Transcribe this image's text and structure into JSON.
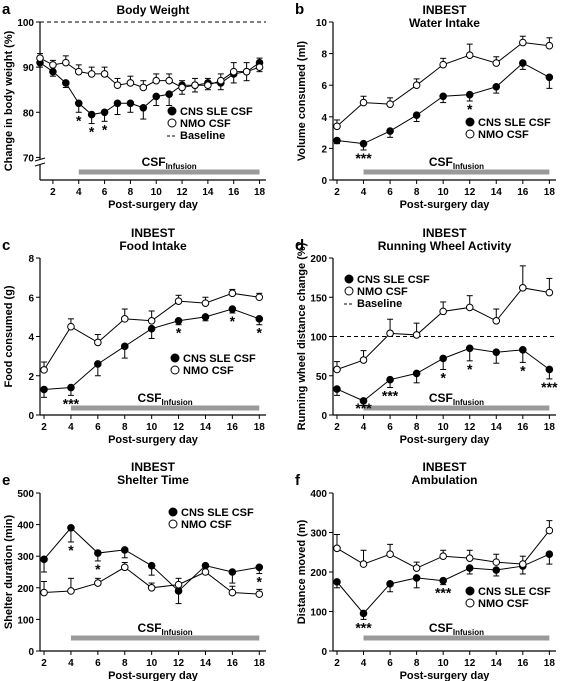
{
  "chart_data": [
    {
      "panel_letter": "a",
      "type": "line",
      "title_lines": [
        "Body Weight"
      ],
      "xlabel": "Post-surgery day",
      "ylabel": "Change in body weight (%)",
      "x_ticks": [
        2,
        4,
        6,
        8,
        10,
        12,
        14,
        16,
        18
      ],
      "xlim": [
        1,
        18.5
      ],
      "y_ticks": [
        70,
        80,
        90,
        100
      ],
      "y_tick_labels": [
        "70",
        "80",
        "90",
        "100"
      ],
      "ylim": [
        65,
        100
      ],
      "axis_break": true,
      "baseline": 100,
      "legend": {
        "position": "center",
        "items": [
          "CNS SLE CSF",
          "NMO CSF",
          "Baseline"
        ]
      },
      "infusion": {
        "label": "CSF",
        "subscript": "Infusion",
        "x_start": 4,
        "x_end": 18
      },
      "series": [
        {
          "name": "CNS SLE CSF",
          "marker": "filled",
          "x": [
            1,
            2,
            3,
            4,
            5,
            6,
            7,
            8,
            9,
            10,
            11,
            12,
            13,
            14,
            15,
            16,
            17,
            18
          ],
          "y": [
            91,
            89,
            86.5,
            82,
            79.5,
            80,
            82,
            82,
            81,
            83.5,
            84,
            86,
            86,
            86.5,
            86.5,
            88.5,
            89,
            91
          ],
          "err": [
            1,
            1,
            1,
            2,
            2,
            2,
            2.5,
            2,
            2.5,
            2,
            2.5,
            2,
            1.5,
            1.5,
            1.5,
            2,
            2,
            2
          ]
        },
        {
          "name": "NMO CSF",
          "marker": "open",
          "x": [
            1,
            2,
            3,
            4,
            5,
            6,
            7,
            8,
            9,
            10,
            11,
            12,
            13,
            14,
            15,
            16,
            17,
            18
          ],
          "y": [
            92,
            90.5,
            91,
            89,
            88.5,
            88.5,
            86,
            86.5,
            85.5,
            87,
            87,
            85.5,
            86,
            86,
            87,
            89,
            89,
            90
          ],
          "err": [
            1,
            1,
            1.5,
            1.5,
            1.5,
            1.5,
            1.5,
            1.5,
            1.5,
            1.5,
            1.5,
            1.5,
            1.5,
            1.5,
            1.5,
            2,
            2,
            2
          ]
        }
      ],
      "significance": [
        {
          "x": 4,
          "label": "*"
        },
        {
          "x": 5,
          "label": "*"
        },
        {
          "x": 6,
          "label": "*"
        }
      ]
    },
    {
      "panel_letter": "b",
      "type": "line",
      "title_lines": [
        "INBEST",
        "Water Intake"
      ],
      "xlabel": "Post-surgery day",
      "ylabel": "Volume consumed (ml)",
      "x_ticks": [
        2,
        4,
        6,
        8,
        10,
        12,
        14,
        16,
        18
      ],
      "xlim": [
        1.7,
        18.5
      ],
      "y_ticks": [
        0,
        2,
        4,
        6,
        8,
        10
      ],
      "y_tick_labels": [
        "0",
        "2",
        "4",
        "6",
        "8",
        "10"
      ],
      "ylim": [
        0,
        10
      ],
      "legend": {
        "position": "right",
        "items": [
          "CNS SLE CSF",
          "NMO CSF"
        ]
      },
      "infusion": {
        "label": "CSF",
        "subscript": "Infusion",
        "x_start": 4,
        "x_end": 18
      },
      "series": [
        {
          "name": "CNS SLE CSF",
          "marker": "filled",
          "x": [
            2,
            4,
            6,
            8,
            10,
            12,
            14,
            16,
            18
          ],
          "y": [
            2.5,
            2.3,
            3.1,
            4.1,
            5.3,
            5.4,
            5.9,
            7.4,
            6.5
          ],
          "err": [
            0.2,
            0.4,
            0.4,
            0.4,
            0.4,
            0.4,
            0.4,
            0.4,
            0.7
          ]
        },
        {
          "name": "NMO CSF",
          "marker": "open",
          "x": [
            2,
            4,
            6,
            8,
            10,
            12,
            14,
            16,
            18
          ],
          "y": [
            3.4,
            4.9,
            4.8,
            6.0,
            7.3,
            7.9,
            7.4,
            8.7,
            8.5
          ],
          "err": [
            0.4,
            0.4,
            0.4,
            0.4,
            0.4,
            0.7,
            0.4,
            0.4,
            0.5
          ]
        }
      ],
      "significance": [
        {
          "x": 4,
          "label": "***"
        },
        {
          "x": 12,
          "label": "*"
        }
      ]
    },
    {
      "panel_letter": "c",
      "type": "line",
      "title_lines": [
        "INBEST",
        "Food Intake"
      ],
      "xlabel": "Post-surgery day",
      "ylabel": "Food consumed (g)",
      "x_ticks": [
        2,
        4,
        6,
        8,
        10,
        12,
        14,
        16,
        18
      ],
      "xlim": [
        1.7,
        18.5
      ],
      "y_ticks": [
        0,
        2,
        4,
        6,
        8
      ],
      "y_tick_labels": [
        "0",
        "2",
        "4",
        "6",
        "8"
      ],
      "ylim": [
        0,
        8
      ],
      "legend": {
        "position": "right",
        "items": [
          "CNS SLE CSF",
          "NMO CSF"
        ]
      },
      "infusion": {
        "label": "CSF",
        "subscript": "Infusion",
        "x_start": 4,
        "x_end": 18
      },
      "series": [
        {
          "name": "CNS SLE CSF",
          "marker": "filled",
          "x": [
            2,
            4,
            6,
            8,
            10,
            12,
            14,
            16,
            18
          ],
          "y": [
            1.3,
            1.4,
            2.6,
            3.5,
            4.4,
            4.8,
            5.0,
            5.4,
            4.9
          ],
          "err": [
            0.4,
            0.4,
            0.6,
            0.6,
            0.5,
            0.2,
            0.2,
            0.2,
            0.3
          ]
        },
        {
          "name": "NMO CSF",
          "marker": "open",
          "x": [
            2,
            4,
            6,
            8,
            10,
            12,
            14,
            16,
            18
          ],
          "y": [
            2.3,
            4.5,
            3.7,
            4.9,
            4.8,
            5.8,
            5.7,
            6.2,
            6.0
          ],
          "err": [
            0.4,
            0.4,
            0.4,
            0.5,
            0.5,
            0.3,
            0.3,
            0.2,
            0.2
          ]
        }
      ],
      "significance": [
        {
          "x": 4,
          "label": "***"
        },
        {
          "x": 12,
          "label": "*"
        },
        {
          "x": 16,
          "label": "*"
        },
        {
          "x": 18,
          "label": "*"
        }
      ]
    },
    {
      "panel_letter": "d",
      "type": "line",
      "title_lines": [
        "INBEST",
        "Running Wheel Activity"
      ],
      "xlabel": "Post-surgery day",
      "ylabel": "Running wheel distance change (%)",
      "x_ticks": [
        2,
        4,
        6,
        8,
        10,
        12,
        14,
        16,
        18
      ],
      "xlim": [
        1.7,
        18.5
      ],
      "y_ticks": [
        0,
        50,
        100,
        150,
        200
      ],
      "y_tick_labels": [
        "0",
        "50",
        "100",
        "150",
        "200"
      ],
      "ylim": [
        0,
        200
      ],
      "baseline": 100,
      "legend": {
        "position": "top-left",
        "items": [
          "CNS SLE CSF",
          "NMO CSF",
          "Baseline"
        ]
      },
      "infusion": {
        "label": "CSF",
        "subscript": "Infusion",
        "x_start": 4,
        "x_end": 18
      },
      "series": [
        {
          "name": "CNS SLE CSF",
          "marker": "filled",
          "x": [
            2,
            4,
            6,
            8,
            10,
            12,
            14,
            16,
            18
          ],
          "y": [
            33,
            18,
            45,
            53,
            72,
            85,
            80,
            83,
            58
          ],
          "err": [
            8,
            6,
            10,
            12,
            14,
            16,
            14,
            16,
            12
          ]
        },
        {
          "name": "NMO CSF",
          "marker": "open",
          "x": [
            2,
            4,
            6,
            8,
            10,
            12,
            14,
            16,
            18
          ],
          "y": [
            58,
            70,
            104,
            102,
            132,
            137,
            120,
            162,
            156
          ],
          "err": [
            10,
            12,
            18,
            15,
            12,
            15,
            15,
            28,
            18
          ]
        }
      ],
      "significance": [
        {
          "x": 4,
          "label": "***"
        },
        {
          "x": 6,
          "label": "***"
        },
        {
          "x": 10,
          "label": "*"
        },
        {
          "x": 12,
          "label": "*"
        },
        {
          "x": 16,
          "label": "*"
        },
        {
          "x": 18,
          "label": "***"
        }
      ]
    },
    {
      "panel_letter": "e",
      "type": "line",
      "title_lines": [
        "INBEST",
        "Shelter Time"
      ],
      "xlabel": "Post-surgery day",
      "ylabel": "Shelter duration (min)",
      "x_ticks": [
        2,
        4,
        6,
        8,
        10,
        12,
        14,
        16,
        18
      ],
      "xlim": [
        1.7,
        18.5
      ],
      "y_ticks": [
        0,
        100,
        200,
        300,
        400,
        500
      ],
      "y_tick_labels": [
        "0",
        "100",
        "200",
        "300",
        "400",
        "500"
      ],
      "ylim": [
        0,
        500
      ],
      "legend": {
        "position": "top-right",
        "items": [
          "CNS SLE CSF",
          "NMO CSF"
        ]
      },
      "infusion": {
        "label": "CSF",
        "subscript": "Infusion",
        "x_start": 4,
        "x_end": 18
      },
      "series": [
        {
          "name": "CNS SLE CSF",
          "marker": "filled",
          "x": [
            2,
            4,
            6,
            8,
            10,
            12,
            14,
            16,
            18
          ],
          "y": [
            290,
            390,
            310,
            320,
            270,
            190,
            270,
            250,
            265
          ],
          "err": [
            40,
            45,
            25,
            25,
            30,
            40,
            25,
            35,
            20
          ]
        },
        {
          "name": "NMO CSF",
          "marker": "open",
          "x": [
            2,
            4,
            6,
            8,
            10,
            12,
            14,
            16,
            18
          ],
          "y": [
            185,
            190,
            215,
            265,
            200,
            210,
            250,
            185,
            180
          ],
          "err": [
            35,
            40,
            15,
            15,
            15,
            20,
            15,
            20,
            15
          ]
        }
      ],
      "significance": [
        {
          "x": 4,
          "label": "*"
        },
        {
          "x": 6,
          "label": "*"
        },
        {
          "x": 18,
          "label": "*"
        }
      ]
    },
    {
      "panel_letter": "f",
      "type": "line",
      "title_lines": [
        "INBEST",
        "Ambulation"
      ],
      "xlabel": "Post-surgery day",
      "ylabel": "Distance moved (m)",
      "x_ticks": [
        2,
        4,
        6,
        8,
        10,
        12,
        14,
        16,
        18
      ],
      "xlim": [
        1.7,
        18.5
      ],
      "y_ticks": [
        0,
        100,
        200,
        300,
        400
      ],
      "y_tick_labels": [
        "0",
        "100",
        "200",
        "300",
        "400"
      ],
      "ylim": [
        0,
        400
      ],
      "legend": {
        "position": "right",
        "items": [
          "CNS SLE CSF",
          "NMO CSF"
        ]
      },
      "infusion": {
        "label": "CSF",
        "subscript": "Infusion",
        "x_start": 4,
        "x_end": 18
      },
      "series": [
        {
          "name": "CNS SLE CSF",
          "marker": "filled",
          "x": [
            2,
            4,
            6,
            8,
            10,
            12,
            14,
            16,
            18
          ],
          "y": [
            175,
            95,
            170,
            185,
            178,
            210,
            205,
            215,
            245
          ],
          "err": [
            15,
            15,
            20,
            25,
            10,
            15,
            15,
            20,
            25
          ]
        },
        {
          "name": "NMO CSF",
          "marker": "open",
          "x": [
            2,
            4,
            6,
            8,
            10,
            12,
            14,
            16,
            18
          ],
          "y": [
            260,
            220,
            245,
            210,
            240,
            235,
            225,
            220,
            305
          ],
          "err": [
            35,
            35,
            25,
            15,
            15,
            20,
            20,
            20,
            25
          ]
        }
      ],
      "significance": [
        {
          "x": 4,
          "label": "***"
        },
        {
          "x": 10,
          "label": "***"
        }
      ]
    }
  ]
}
